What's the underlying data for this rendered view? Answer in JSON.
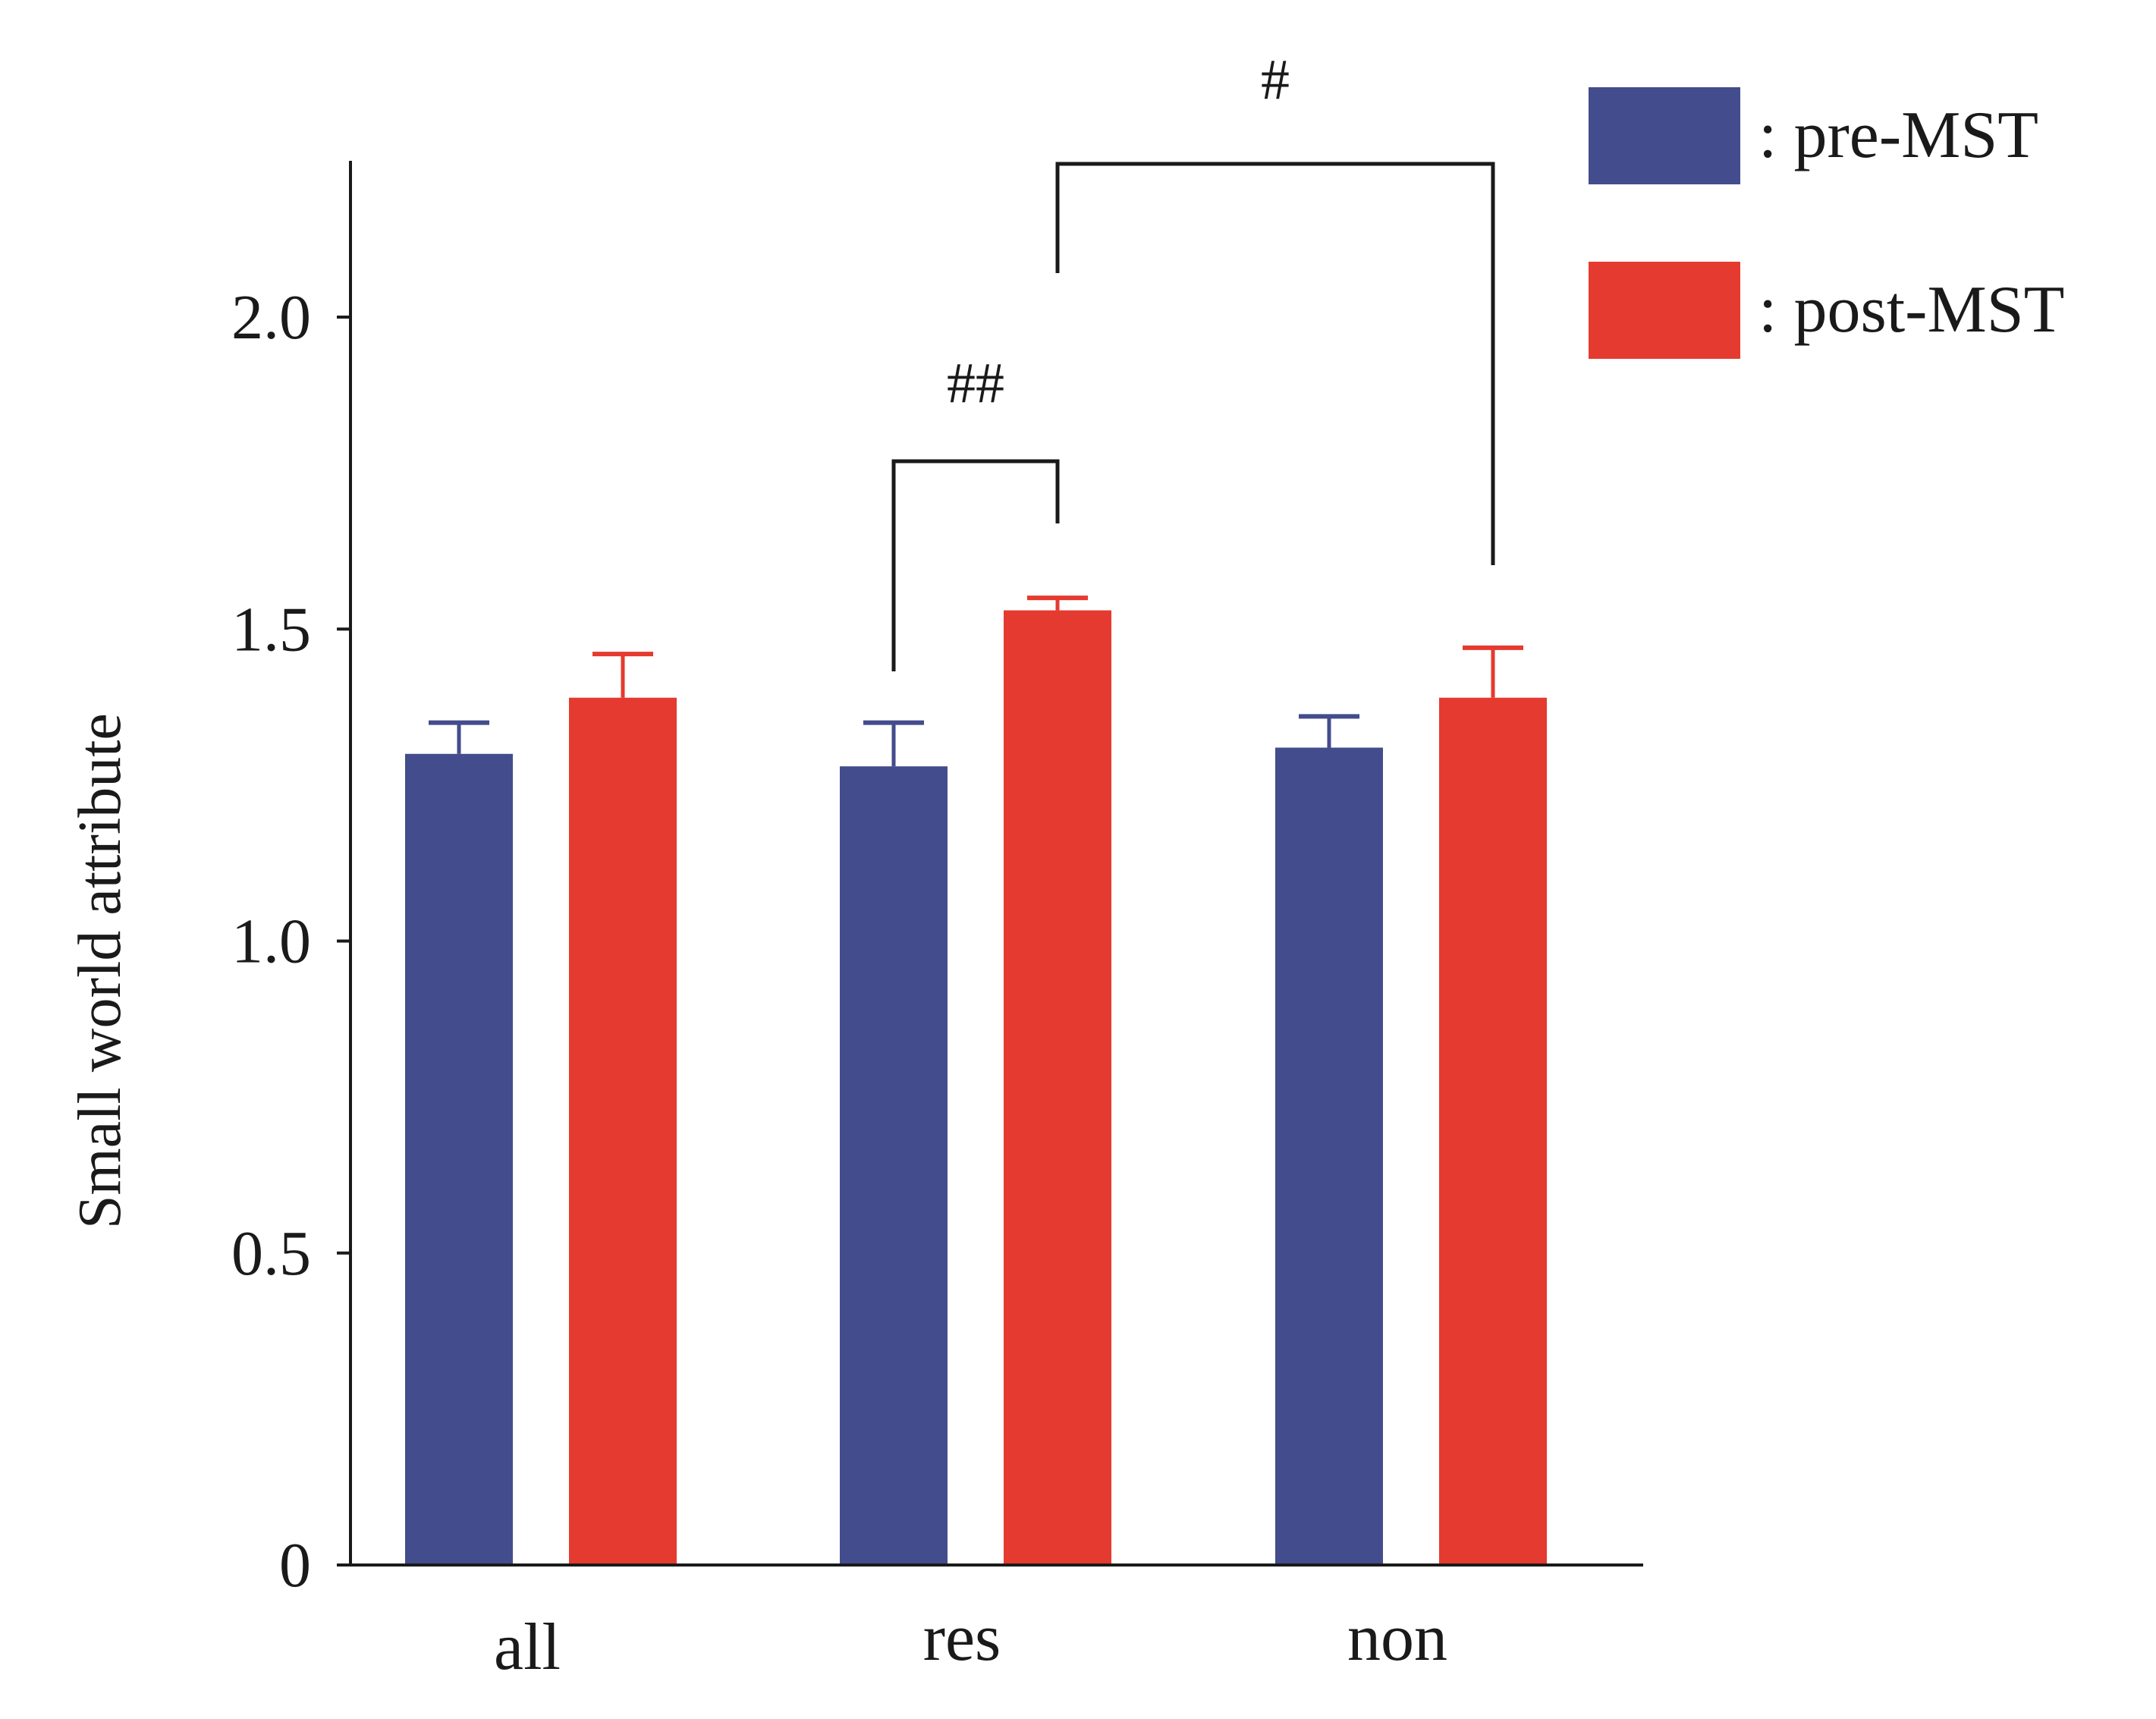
{
  "chart_data": {
    "type": "bar",
    "title": "",
    "xlabel": "",
    "ylabel": "Small world attribute",
    "ylim": [
      0,
      2.25
    ],
    "yticks": [
      {
        "value": 0,
        "label": "0"
      },
      {
        "value": 0.5,
        "label": "0.5"
      },
      {
        "value": 1.0,
        "label": "1.0"
      },
      {
        "value": 1.5,
        "label": "1.5"
      },
      {
        "value": 2.0,
        "label": "2.0"
      }
    ],
    "categories": [
      "all",
      "res",
      "non"
    ],
    "series": [
      {
        "name": ": pre-MST",
        "color": "#434c8c",
        "values": [
          1.3,
          1.28,
          1.31
        ],
        "errors": [
          0.05,
          0.07,
          0.05
        ]
      },
      {
        "name": ": post-MST",
        "color": "#e53a2f",
        "values": [
          1.39,
          1.53,
          1.39
        ],
        "errors": [
          0.07,
          0.02,
          0.08
        ]
      }
    ],
    "legend_position": "top-right",
    "grid": false,
    "significance": [
      {
        "label": "##",
        "from": {
          "category": 1,
          "series": 0
        },
        "to": {
          "category": 1,
          "series": 1
        }
      },
      {
        "label": "#",
        "from": {
          "category": 1,
          "series": 1
        },
        "to": {
          "category": 2,
          "series": 1
        }
      }
    ]
  }
}
